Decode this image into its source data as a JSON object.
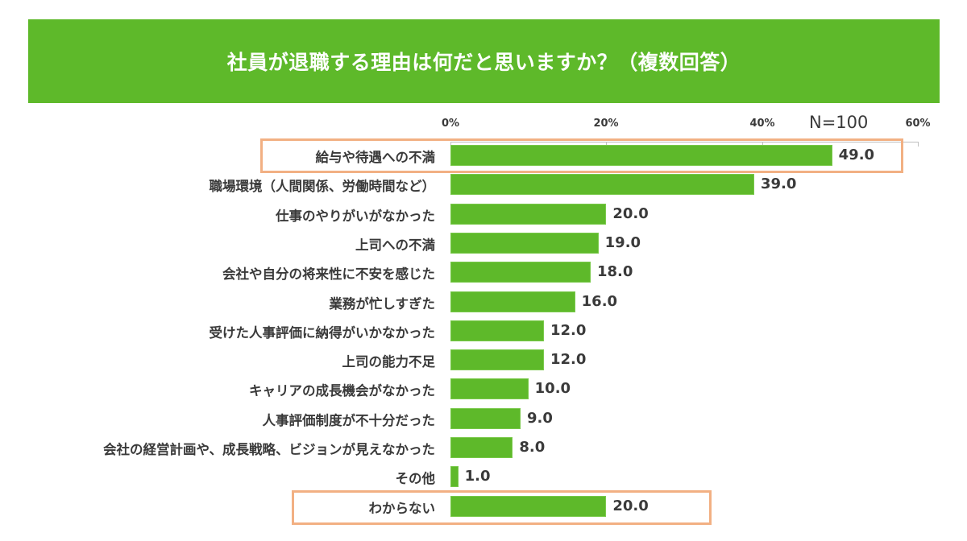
{
  "header": {
    "title": "社員が退職する理由は何だと思いますか？（複数回答）"
  },
  "axis": {
    "ticks": [
      "0%",
      "20%",
      "40%",
      "60%"
    ],
    "sample_size": "N=100"
  },
  "colors": {
    "bar": "#5eb92a",
    "banner": "#5eb92a",
    "highlight": "#f2b083",
    "text": "#3a3a3a"
  },
  "rows": [
    {
      "label": "給与や待遇への不満",
      "value": "49.0"
    },
    {
      "label": "職場環境（人間関係、労働時間など）",
      "value": "39.0"
    },
    {
      "label": "仕事のやりがいがなかった",
      "value": "20.0"
    },
    {
      "label": "上司への不満",
      "value": "19.0"
    },
    {
      "label": "会社や自分の将来性に不安を感じた",
      "value": "18.0"
    },
    {
      "label": "業務が忙しすぎた",
      "value": "16.0"
    },
    {
      "label": "受けた人事評価に納得がいかなかった",
      "value": "12.0"
    },
    {
      "label": "上司の能力不足",
      "value": "12.0"
    },
    {
      "label": "キャリアの成長機会がなかった",
      "value": "10.0"
    },
    {
      "label": "人事評価制度が不十分だった",
      "value": "9.0"
    },
    {
      "label": "会社の経営計画や、成長戦略、ビジョンが見えなかった",
      "value": "8.0"
    },
    {
      "label": "その他",
      "value": "1.0"
    },
    {
      "label": "わからない",
      "value": "20.0"
    }
  ],
  "chart_data": {
    "type": "bar",
    "orientation": "horizontal",
    "title": "社員が退職する理由は何だと思いますか？（複数回答）",
    "categories": [
      "給与や待遇への不満",
      "職場環境（人間関係、労働時間など）",
      "仕事のやりがいがなかった",
      "上司への不満",
      "会社や自分の将来性に不安を感じた",
      "業務が忙しすぎた",
      "受けた人事評価に納得がいかなかった",
      "上司の能力不足",
      "キャリアの成長機会がなかった",
      "人事評価制度が不十分だった",
      "会社の経営計画や、成長戦略、ビジョンが見えなかった",
      "その他",
      "わからない"
    ],
    "values": [
      49.0,
      39.0,
      20.0,
      19.0,
      18.0,
      16.0,
      12.0,
      12.0,
      10.0,
      9.0,
      8.0,
      1.0,
      20.0
    ],
    "xlabel": "",
    "ylabel": "",
    "xlim": [
      0,
      60
    ],
    "x_ticks": [
      "0%",
      "20%",
      "40%",
      "60%"
    ],
    "annotations": [
      "N=100"
    ],
    "highlighted": [
      "給与や待遇への不満",
      "わからない"
    ],
    "grid": false,
    "legend": null
  }
}
